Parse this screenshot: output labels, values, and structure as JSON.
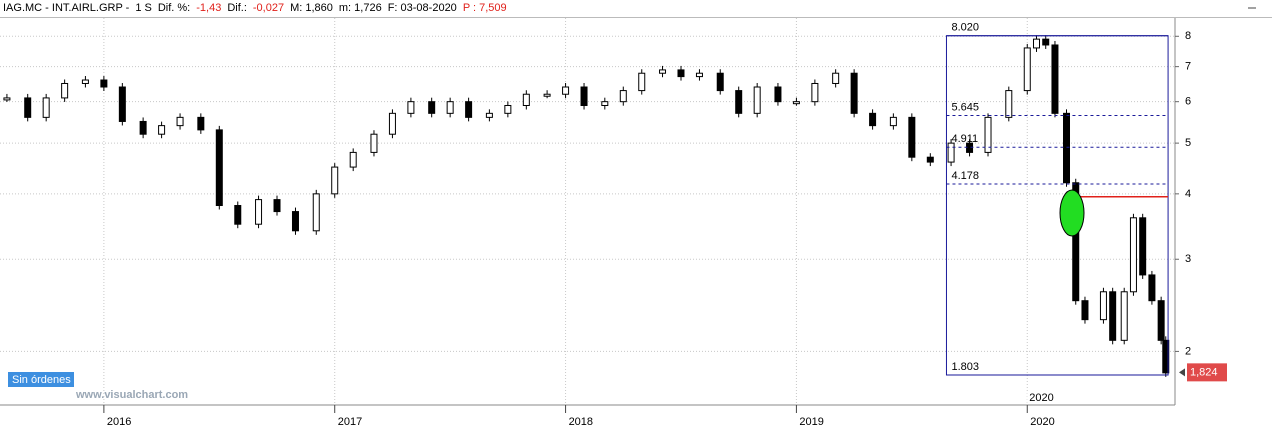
{
  "header": [
    {
      "text": "IAG.MC - INT.AIRL.GRP -",
      "color": "#000000"
    },
    {
      "text": "1 S",
      "color": "#000000"
    },
    {
      "text": "Dif. %:",
      "color": "#000000"
    },
    {
      "text": "-1,43",
      "color": "#e0201a"
    },
    {
      "text": "Dif.:",
      "color": "#000000"
    },
    {
      "text": "-0,027",
      "color": "#e0201a"
    },
    {
      "text": "M: 1,860",
      "color": "#000000"
    },
    {
      "text": "m: 1,726",
      "color": "#000000"
    },
    {
      "text": "F: 03-08-2020",
      "color": "#000000"
    },
    {
      "text": "P : 7,509",
      "color": "#e0201a"
    }
  ],
  "status": "Sin órdenes",
  "watermark": "www.visualchart.com",
  "chart_data": {
    "type": "candlestick",
    "log_scale": true,
    "grid": true,
    "xlim": [
      2015.55,
      2020.64
    ],
    "ylim": [
      1.58,
      8.67
    ],
    "yticks": [
      2,
      3,
      4,
      5,
      6,
      7,
      8
    ],
    "xticks": [
      2016,
      2017,
      2018,
      2019,
      2020
    ],
    "cursor_label": "2020",
    "x": [
      2015.58,
      2015.67,
      2015.75,
      2015.83,
      2015.92,
      2016.0,
      2016.08,
      2016.17,
      2016.25,
      2016.33,
      2016.42,
      2016.5,
      2016.58,
      2016.67,
      2016.75,
      2016.83,
      2016.92,
      2017.0,
      2017.08,
      2017.17,
      2017.25,
      2017.33,
      2017.42,
      2017.5,
      2017.58,
      2017.67,
      2017.75,
      2017.83,
      2017.92,
      2018.0,
      2018.08,
      2018.17,
      2018.25,
      2018.33,
      2018.42,
      2018.5,
      2018.58,
      2018.67,
      2018.75,
      2018.83,
      2018.92,
      2019.0,
      2019.08,
      2019.17,
      2019.25,
      2019.33,
      2019.42,
      2019.5,
      2019.58,
      2019.67,
      2019.75,
      2019.83,
      2019.92,
      2020.0,
      2020.04,
      2020.08,
      2020.12,
      2020.17,
      2020.21,
      2020.25,
      2020.33,
      2020.37,
      2020.42,
      2020.46,
      2020.5,
      2020.54,
      2020.58,
      2020.6
    ],
    "values": [
      6.1,
      5.6,
      6.1,
      6.5,
      6.6,
      6.4,
      5.5,
      5.2,
      5.4,
      5.6,
      5.3,
      3.8,
      3.5,
      3.9,
      3.7,
      3.4,
      4.0,
      4.5,
      4.8,
      5.2,
      5.7,
      6.0,
      5.7,
      6.0,
      5.6,
      5.7,
      5.9,
      6.2,
      6.2,
      6.4,
      5.9,
      6.0,
      6.3,
      6.8,
      6.9,
      6.7,
      6.8,
      6.3,
      5.7,
      6.4,
      6.0,
      6.0,
      6.5,
      6.8,
      5.7,
      5.4,
      5.6,
      4.7,
      4.6,
      5.0,
      4.8,
      5.6,
      6.3,
      7.6,
      7.9,
      7.7,
      5.7,
      4.2,
      2.5,
      2.3,
      2.6,
      2.1,
      2.6,
      3.6,
      2.8,
      2.5,
      2.1,
      1.82
    ],
    "fib_range": [
      2019.65,
      2020.61
    ],
    "fib_levels": [
      {
        "value": 8.02,
        "label": "8.020"
      },
      {
        "value": 5.645,
        "label": "5.645"
      },
      {
        "value": 4.911,
        "label": "4.911"
      },
      {
        "value": 4.178,
        "label": "4.178"
      },
      {
        "value": 1.803,
        "label": "1.803"
      }
    ],
    "resistance": {
      "start": 2020.18,
      "value": 3.95
    },
    "last_price": {
      "value": 1.824,
      "label": "1,824"
    }
  }
}
